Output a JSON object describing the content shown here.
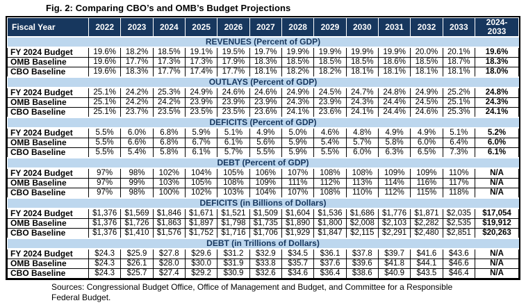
{
  "title": "Fig. 2: Comparing CBO’s and OMB’s Budget Projections",
  "footer": "Sources: Congressional Budget Office, Office of Management and Budget, and Committee for a Responsible Federal Budget.",
  "colors": {
    "header_bg": "#17375E",
    "header_text": "#FFFFFF",
    "section_bg": "#BDD7EE",
    "section_text": "#17375E",
    "border": "#000000",
    "cell_bg": "#FFFFFF"
  },
  "chart_data": {
    "type": "table",
    "title": "Fig. 2: Comparing CBO’s and OMB’s Budget Projections",
    "columns": [
      "Fiscal Year",
      "2022",
      "2023",
      "2024",
      "2025",
      "2026",
      "2027",
      "2028",
      "2029",
      "2030",
      "2031",
      "2032",
      "2033",
      "2024-\n2033"
    ],
    "sections": [
      {
        "label": "REVENUES (Percent of GDP)",
        "rows": [
          {
            "label": "FY 2024 Budget",
            "values": [
              "19.6%",
              "18.2%",
              "18.5%",
              "19.1%",
              "19.5%",
              "19.7%",
              "19.9%",
              "19.9%",
              "19.9%",
              "19.9%",
              "20.0%",
              "20.1%",
              "19.6%"
            ]
          },
          {
            "label": "OMB Baseline",
            "values": [
              "19.6%",
              "17.7%",
              "17.3%",
              "17.3%",
              "17.9%",
              "18.3%",
              "18.5%",
              "18.5%",
              "18.5%",
              "18.6%",
              "18.5%",
              "18.7%",
              "18.3%"
            ]
          },
          {
            "label": "CBO Baseline",
            "values": [
              "19.6%",
              "18.3%",
              "17.7%",
              "17.4%",
              "17.7%",
              "18.1%",
              "18.2%",
              "18.2%",
              "18.1%",
              "18.1%",
              "18.1%",
              "18.1%",
              "18.0%"
            ]
          }
        ]
      },
      {
        "label": "OUTLAYS (Percent of GDP)",
        "rows": [
          {
            "label": "FY 2024 Budget",
            "values": [
              "25.1%",
              "24.2%",
              "25.3%",
              "24.9%",
              "24.6%",
              "24.6%",
              "24.9%",
              "24.5%",
              "24.7%",
              "24.8%",
              "24.9%",
              "25.2%",
              "24.8%"
            ]
          },
          {
            "label": "OMB Baseline",
            "values": [
              "25.1%",
              "24.2%",
              "24.2%",
              "23.9%",
              "23.9%",
              "23.9%",
              "24.3%",
              "23.9%",
              "24.3%",
              "24.4%",
              "24.5%",
              "25.1%",
              "24.3%"
            ]
          },
          {
            "label": "CBO Baseline",
            "values": [
              "25.1%",
              "23.7%",
              "23.5%",
              "23.5%",
              "23.5%",
              "23.6%",
              "24.1%",
              "23.6%",
              "24.1%",
              "24.4%",
              "24.6%",
              "25.3%",
              "24.1%"
            ]
          }
        ]
      },
      {
        "label": "DEFICITS (Percent of GDP)",
        "rows": [
          {
            "label": "FY 2024 Budget",
            "values": [
              "5.5%",
              "6.0%",
              "6.8%",
              "5.9%",
              "5.1%",
              "4.9%",
              "5.0%",
              "4.6%",
              "4.8%",
              "4.9%",
              "4.9%",
              "5.1%",
              "5.2%"
            ]
          },
          {
            "label": "OMB Baseline",
            "values": [
              "5.5%",
              "6.6%",
              "6.8%",
              "6.7%",
              "6.1%",
              "5.6%",
              "5.9%",
              "5.4%",
              "5.7%",
              "5.8%",
              "6.0%",
              "6.4%",
              "6.0%"
            ]
          },
          {
            "label": "CBO Baseline",
            "values": [
              "5.5%",
              "5.4%",
              "5.8%",
              "6.1%",
              "5.7%",
              "5.5%",
              "5.9%",
              "5.5%",
              "6.0%",
              "6.3%",
              "6.5%",
              "7.3%",
              "6.1%"
            ]
          }
        ]
      },
      {
        "label": "DEBT (Percent of GDP)",
        "rows": [
          {
            "label": "FY 2024 Budget",
            "values": [
              "97%",
              "98%",
              "102%",
              "104%",
              "105%",
              "106%",
              "107%",
              "108%",
              "108%",
              "109%",
              "109%",
              "110%",
              "N/A"
            ]
          },
          {
            "label": "OMB Baseline",
            "values": [
              "97%",
              "99%",
              "103%",
              "105%",
              "108%",
              "109%",
              "111%",
              "112%",
              "113%",
              "114%",
              "116%",
              "117%",
              "N/A"
            ]
          },
          {
            "label": "CBO Baseline",
            "values": [
              "97%",
              "98%",
              "100%",
              "102%",
              "103%",
              "104%",
              "107%",
              "108%",
              "110%",
              "112%",
              "115%",
              "118%",
              "N/A"
            ]
          }
        ]
      },
      {
        "label": "DEFICITS (in Billions of Dollars)",
        "rows": [
          {
            "label": "FY 2024 Budget",
            "values": [
              "$1,376",
              "$1,569",
              "$1,846",
              "$1,671",
              "$1,521",
              "$1,509",
              "$1,604",
              "$1,536",
              "$1,686",
              "$1,776",
              "$1,871",
              "$2,035",
              "$17,054"
            ]
          },
          {
            "label": "OMB Baseline",
            "values": [
              "$1,376",
              "$1,726",
              "$1,863",
              "$1,897",
              "$1,798",
              "$1,735",
              "$1,890",
              "$1,800",
              "$2,008",
              "$2,103",
              "$2,282",
              "$2,535",
              "$19,912"
            ]
          },
          {
            "label": "CBO Baseline",
            "values": [
              "$1,376",
              "$1,410",
              "$1,576",
              "$1,752",
              "$1,716",
              "$1,706",
              "$1,929",
              "$1,847",
              "$2,115",
              "$2,291",
              "$2,480",
              "$2,851",
              "$20,263"
            ]
          }
        ]
      },
      {
        "label": "DEBT (in Trillions of Dollars)",
        "rows": [
          {
            "label": "FY 2024 Budget",
            "values": [
              "$24.3",
              "$25.9",
              "$27.8",
              "$29.6",
              "$31.2",
              "$32.9",
              "$34.5",
              "$36.1",
              "$37.8",
              "$39.7",
              "$41.6",
              "$43.6",
              "N/A"
            ]
          },
          {
            "label": "OMB Baseline",
            "values": [
              "$24.3",
              "$26.1",
              "$28.0",
              "$30.0",
              "$31.9",
              "$33.8",
              "$35.7",
              "$37.6",
              "$39.6",
              "$41.8",
              "$44.1",
              "$46.6",
              "N/A"
            ]
          },
          {
            "label": "CBO Baseline",
            "values": [
              "$24.3",
              "$25.7",
              "$27.4",
              "$29.2",
              "$30.9",
              "$32.6",
              "$34.6",
              "$36.4",
              "$38.6",
              "$40.9",
              "$43.5",
              "$46.4",
              "N/A"
            ]
          }
        ]
      }
    ]
  }
}
